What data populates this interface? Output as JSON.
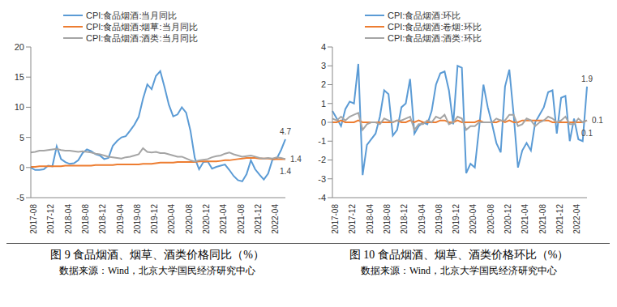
{
  "chart_data": [
    {
      "type": "line",
      "title": "图 9 食品烟酒、烟草、酒类价格同比（%）",
      "subtitle": "数据来源：Wind，北京大学国民经济研究中心",
      "categories": [
        "2017-08",
        null,
        null,
        null,
        "2017-12",
        null,
        null,
        null,
        "2018-04",
        null,
        null,
        null,
        "2018-08",
        null,
        null,
        null,
        "2018-12",
        null,
        null,
        null,
        "2019-04",
        null,
        null,
        null,
        "2019-08",
        null,
        null,
        null,
        "2019-12",
        null,
        null,
        null,
        "2020-04",
        null,
        null,
        null,
        "2020-08",
        null,
        null,
        null,
        "2020-12",
        null,
        null,
        null,
        "2021-04",
        null,
        null,
        null,
        "2021-08",
        null,
        null,
        null,
        "2021-12",
        null,
        null,
        null,
        "2022-04",
        null,
        null,
        null
      ],
      "series": [
        {
          "name": "CPI:食品烟酒:当月同比",
          "color": "#5b9bd5",
          "values": [
            0.0,
            -0.4,
            -0.4,
            -0.3,
            0.3,
            0.2,
            3.5,
            1.4,
            0.9,
            0.6,
            0.7,
            1.2,
            2.4,
            3.0,
            2.7,
            2.2,
            2.0,
            1.4,
            1.6,
            3.6,
            4.4,
            5.0,
            5.2,
            6.1,
            7.1,
            8.4,
            11.4,
            13.8,
            13.0,
            15.2,
            16.0,
            13.3,
            10.4,
            8.5,
            8.8,
            10.0,
            9.1,
            6.1,
            1.6,
            -0.3,
            0.9,
            1.0,
            -0.2,
            0.1,
            0.3,
            0.5,
            -0.4,
            -1.4,
            -2.1,
            -2.3,
            -1.1,
            1.2,
            -0.3,
            -1.2,
            -2.0,
            -1.0,
            1.3,
            1.5,
            2.9,
            4.7
          ]
        },
        {
          "name": "CPI:食品烟酒:烟草:当月同比",
          "color": "#ed7d31",
          "values": [
            0.1,
            0.1,
            0.2,
            0.2,
            0.2,
            0.2,
            0.2,
            0.2,
            0.3,
            0.3,
            0.3,
            0.3,
            0.3,
            0.3,
            0.3,
            0.4,
            0.4,
            0.4,
            0.4,
            0.4,
            0.5,
            0.5,
            0.5,
            0.5,
            0.5,
            0.5,
            0.6,
            0.6,
            0.6,
            0.7,
            0.8,
            0.8,
            0.8,
            0.8,
            0.9,
            0.9,
            0.9,
            0.9,
            0.9,
            1.0,
            1.0,
            1.0,
            1.0,
            1.0,
            1.1,
            1.2,
            1.2,
            1.3,
            1.4,
            1.5,
            1.6,
            1.6,
            1.6,
            1.5,
            1.5,
            1.5,
            1.4,
            1.4,
            1.4,
            1.4
          ]
        },
        {
          "name": "CPI:食品烟酒:酒类:当月同比",
          "color": "#a5a5a5",
          "values": [
            2.5,
            2.6,
            2.8,
            2.8,
            2.9,
            3.0,
            3.1,
            2.9,
            2.8,
            2.8,
            2.7,
            2.6,
            2.7,
            2.6,
            2.5,
            2.3,
            2.2,
            2.0,
            1.8,
            1.7,
            1.6,
            1.5,
            1.7,
            1.8,
            2.0,
            2.2,
            3.2,
            2.6,
            2.5,
            2.6,
            2.4,
            2.4,
            2.2,
            2.0,
            1.8,
            1.8,
            1.5,
            1.2,
            1.0,
            1.2,
            1.3,
            1.4,
            1.7,
            1.9,
            2.0,
            2.3,
            2.5,
            2.2,
            2.0,
            1.8,
            1.9,
            2.0,
            1.8,
            1.6,
            1.5,
            1.6,
            1.5,
            1.7,
            1.6,
            1.4
          ]
        }
      ],
      "ylim": [
        -5,
        20
      ],
      "yticks": [
        -5,
        0,
        5,
        10,
        15,
        20
      ],
      "grid": false,
      "legend": "top",
      "annotations": [
        {
          "text": "4.7",
          "series": "CPI:食品烟酒:当月同比"
        },
        {
          "text": "1.4",
          "series": "CPI:食品烟酒:烟草:当月同比"
        },
        {
          "text": "1.4",
          "series": "CPI:食品烟酒:酒类:当月同比"
        }
      ]
    },
    {
      "type": "line",
      "title": "图 10 食品烟酒、烟草、酒类价格环比（%）",
      "subtitle": "数据来源：Wind，北京大学国民经济研究中心",
      "categories": [
        "2017-08",
        null,
        null,
        null,
        "2017-12",
        null,
        null,
        null,
        "2018-04",
        null,
        null,
        null,
        "2018-08",
        null,
        null,
        null,
        "2018-12",
        null,
        null,
        null,
        "2019-04",
        null,
        null,
        null,
        "2019-08",
        null,
        null,
        null,
        "2019-12",
        null,
        null,
        null,
        "2020-04",
        null,
        null,
        null,
        "2020-08",
        null,
        null,
        null,
        "2020-12",
        null,
        null,
        null,
        "2021-04",
        null,
        null,
        null,
        "2021-08",
        null,
        null,
        null,
        "2021-12",
        null,
        null,
        null,
        "2022-04",
        null,
        null,
        null
      ],
      "series": [
        {
          "name": "CPI:食品烟酒:环比",
          "color": "#5b9bd5",
          "values": [
            0.6,
            0.2,
            -0.2,
            0.7,
            1.1,
            1.0,
            3.1,
            -2.8,
            -1.2,
            -0.9,
            -0.6,
            0.3,
            1.7,
            1.5,
            -0.7,
            -0.4,
            0.8,
            1.0,
            2.3,
            -0.6,
            -0.2,
            0.0,
            -0.1,
            0.6,
            2.0,
            2.6,
            2.7,
            1.7,
            -0.1,
            3.0,
            2.9,
            -2.7,
            -2.2,
            -2.4,
            -0.3,
            2.0,
            0.8,
            -0.1,
            -1.1,
            -1.6,
            1.9,
            2.8,
            0.4,
            -2.4,
            -1.5,
            -1.1,
            -1.5,
            0.0,
            0.4,
            0.8,
            1.6,
            1.7,
            -0.6,
            1.3,
            1.4,
            -1.0,
            0.2,
            -0.9,
            -1.0,
            1.9
          ]
        },
        {
          "name": "CPI:食品烟酒:卷烟:环比",
          "color": "#ed7d31",
          "values": [
            0.0,
            0.0,
            0.1,
            0.0,
            0.0,
            0.0,
            0.1,
            0.0,
            0.0,
            0.0,
            0.0,
            0.0,
            0.0,
            0.0,
            0.0,
            0.1,
            0.0,
            0.0,
            0.1,
            0.0,
            0.1,
            0.0,
            0.0,
            0.0,
            0.0,
            0.1,
            0.1,
            0.0,
            0.0,
            0.1,
            0.0,
            0.0,
            0.0,
            0.0,
            0.1,
            0.0,
            0.0,
            0.0,
            0.0,
            0.1,
            0.0,
            0.1,
            0.0,
            0.0,
            0.1,
            0.1,
            0.1,
            0.1,
            0.1,
            0.1,
            0.1,
            0.0,
            0.0,
            0.0,
            0.0,
            0.0,
            0.0,
            0.0,
            0.0,
            0.1
          ]
        },
        {
          "name": "CPI:食品烟酒:酒类:环比",
          "color": "#a5a5a5",
          "values": [
            0.2,
            0.1,
            0.3,
            0.1,
            0.3,
            0.4,
            0.5,
            -0.4,
            -0.1,
            0.0,
            0.0,
            -0.1,
            0.2,
            0.1,
            0.0,
            0.1,
            0.1,
            0.2,
            0.3,
            -0.4,
            -0.1,
            -0.1,
            0.1,
            0.0,
            0.3,
            0.2,
            0.4,
            -0.1,
            0.0,
            0.3,
            0.2,
            -0.4,
            -0.2,
            -0.2,
            0.0,
            0.0,
            0.0,
            0.0,
            0.2,
            0.1,
            0.1,
            0.4,
            0.4,
            -0.2,
            -0.1,
            0.2,
            0.1,
            -0.2,
            0.0,
            0.1,
            0.3,
            0.2,
            0.0,
            0.1,
            0.3,
            -0.1,
            -0.1,
            0.2,
            0.0,
            0.1
          ]
        }
      ],
      "ylim": [
        -4,
        4
      ],
      "yticks": [
        -4,
        -3,
        -2,
        -1,
        0,
        1,
        2,
        3,
        4
      ],
      "grid": false,
      "legend": "top",
      "annotations": [
        {
          "text": "1.9",
          "series": "CPI:食品烟酒:环比"
        },
        {
          "text": "0.1",
          "series": "CPI:食品烟酒:卷烟:环比"
        },
        {
          "text": "0.1",
          "series": "CPI:食品烟酒:酒类:环比"
        }
      ]
    }
  ]
}
